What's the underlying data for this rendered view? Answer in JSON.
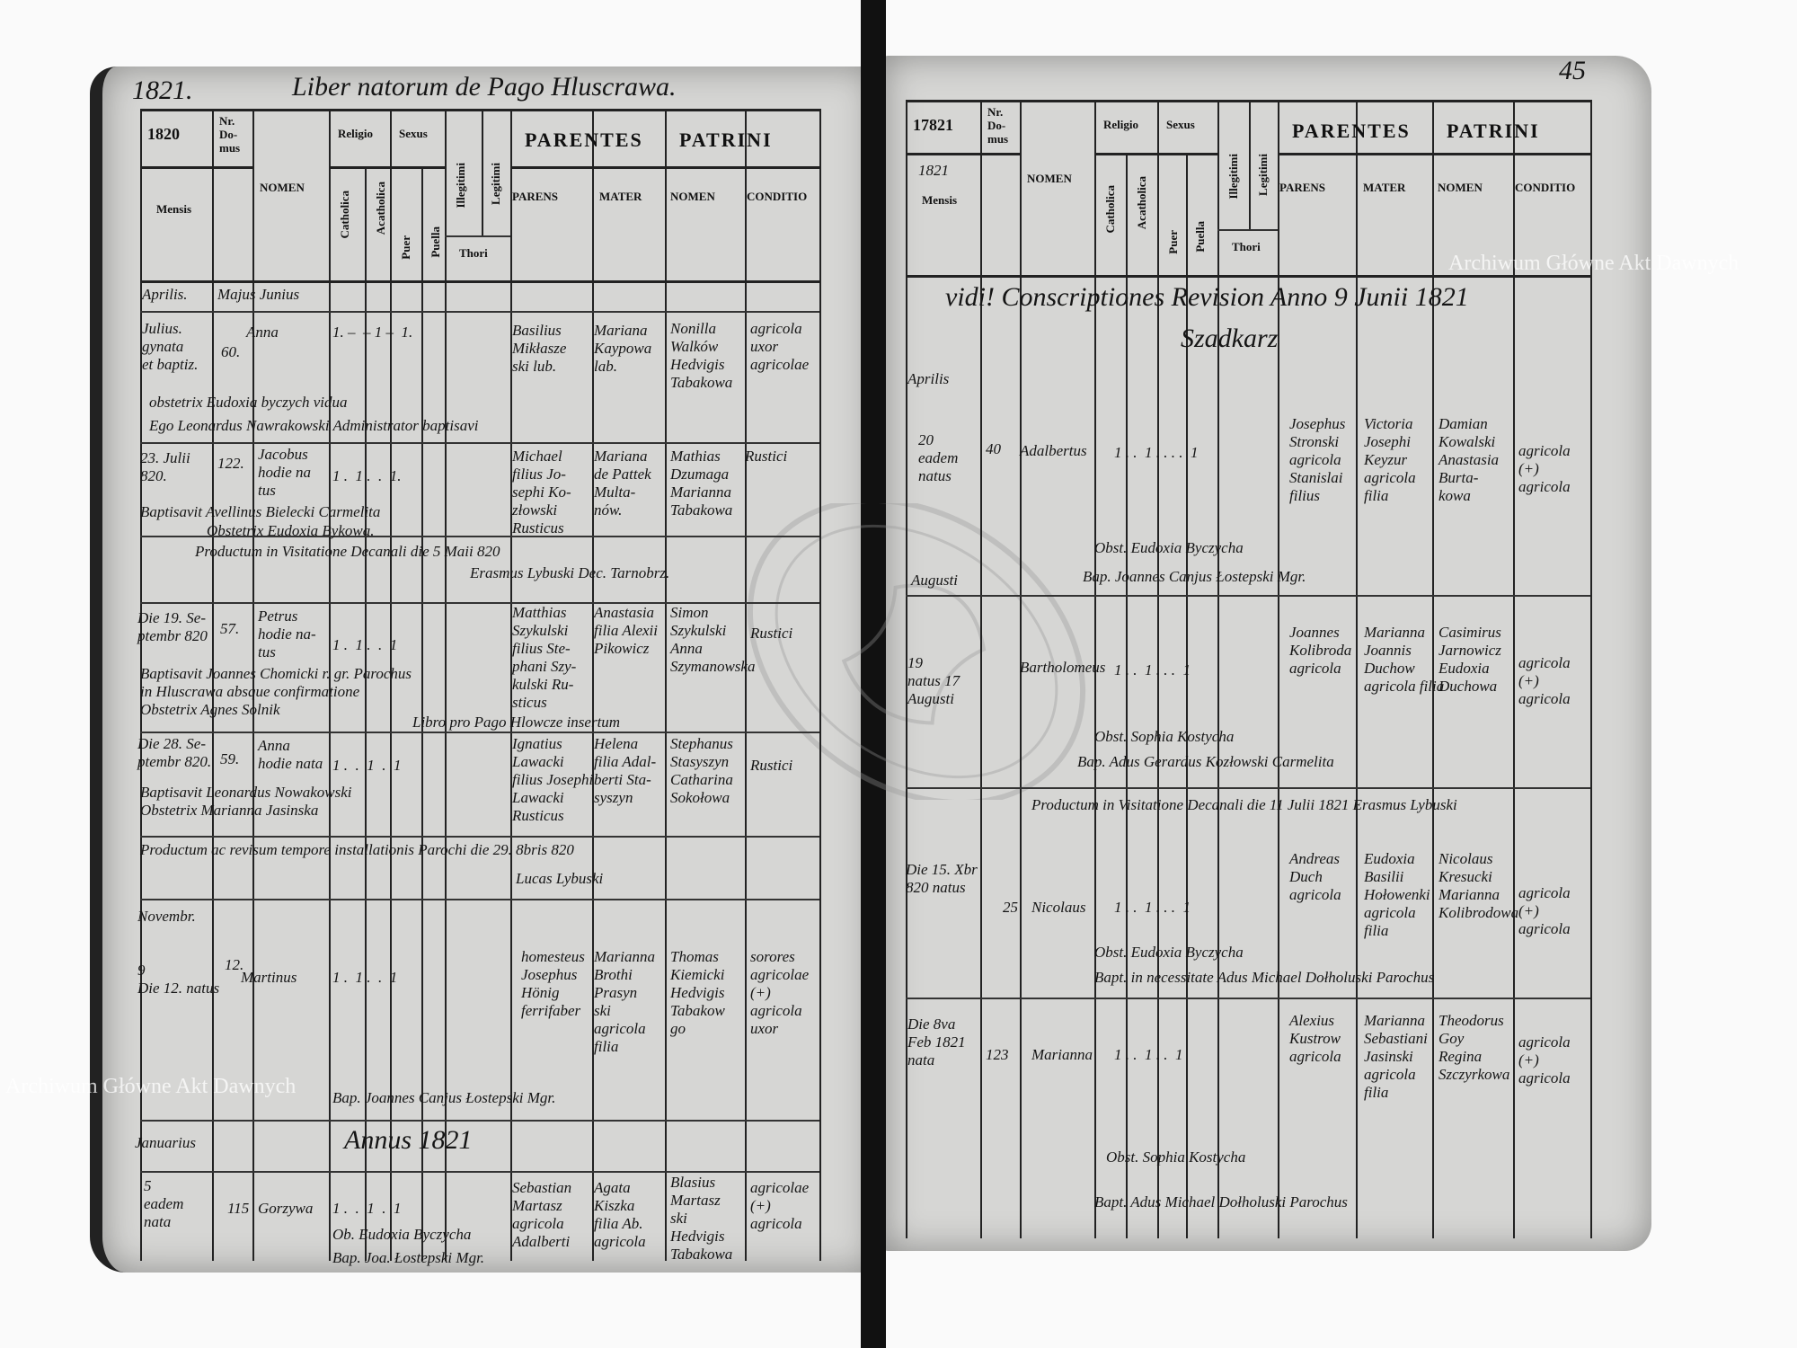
{
  "left_page": {
    "folio": "1821.",
    "title": "Liber natorum de Pago Hluscrawa.",
    "header": {
      "year": "1820",
      "mensis": "Mensis",
      "nr_domus": "Nr.\nDo-\nmus",
      "nomen": "NOMEN",
      "religio": "Religio",
      "catholica": "Catholica",
      "acatholica": "Acatholica",
      "sexus": "Sexus",
      "puer": "Puer",
      "puella": "Puella",
      "illegitimi": "Illegitimi",
      "legitimi": "Legitimi",
      "thori": "Thori",
      "parentes": "PARENTES",
      "parens": "PARENS",
      "mater": "MATER",
      "patrini": "PATRINI",
      "patrini_nomen": "NOMEN",
      "conditio": "CONDITIO"
    },
    "entries": [
      "Aprilis.",
      "Majus Junius",
      "Julius.\ngynata\net baptiz.",
      "Anna",
      "1. –  – 1 –  1.",
      "60.",
      "Basilius\nMikłasze\nski lub.",
      "Mariana\nKaypowa\nlab.",
      "Nonilla\nWalków\nHedvigis\nTabakowa",
      "agricola\nuxor\nagricolae",
      "obstetrix Eudoxia byczych vidua",
      "Ego Leonardus Nawrakowski Administrator baptisavi",
      "23. Julii\n820.",
      "122.",
      "Jacobus\nhodie na\ntus",
      "1 .  1 .  .  1.",
      "Michael\nfilius Jo-\nsephi Ko-\nzłowski\nRusticus",
      "Mariana\nde Pattek\nMulta-\nnów.",
      "Mathias\nDzumaga\nMarianna\nTabakowa",
      "Rustici",
      "Baptisavit Avellinus Bielecki Carmelita",
      "Obstetrix Eudoxia Bykowa.",
      "Productum in Visitatione Decanali die 5 Maii 820",
      "Erasmus Lybuski Dec. Tarnobrz.",
      "Die 19. Se-\nptembr 820",
      "57.",
      "Petrus\nhodie na-\ntus",
      "1 .  1 .  .  1",
      "Matthias\nSzykulski\nfilius Ste-\nphani Szy-\nkulski Ru-\nsticus",
      "Anastasia\nfilia Alexii\nPikowicz",
      "Simon\nSzykulski\nAnna\nSzymanowska",
      "Rustici",
      "Baptisavit Joannes Chomicki r. gr. Parochus\nin Hluscrawa absque confirmatione\nObstetrix Agnes Solnik",
      "Libro pro Pago Hlowcze insertum",
      "Die 28. Se-\nptembr 820.",
      "59.",
      "Anna\nhodie nata",
      "1 .  .  1  .  1",
      "Ignatius\nLawacki\nfilius Josephi\nLawacki\nRusticus",
      "Helena\nfilia Adal-\nberti Sta-\nsyszyn",
      "Stephanus\nStasyszyn\nCatharina\nSokołowa",
      "Rustici",
      "Baptisavit Leonardus Nowakowski\nObstetrix Marianna Jasinska",
      "Productum ac revisum tempore installationis Parochi die 29. 8bris 820",
      "Lucas Lybuski",
      "Novembr.",
      "9\nDie 12. natus",
      "12.",
      "Martinus",
      "1 .  1 .  .  1",
      "homesteus\nJosephus\nHönig\nferrifaber",
      "Marianna\nBrothi\nPrasyn\nski\nagricola\nfilia",
      "Thomas\nKiemicki\nHedvigis\nTabakow\ngo",
      "sorores\nagricolae\n(+)\nagricola\nuxor",
      "Bap. Joannes Canjus Łostepski Mgr.",
      "Januarius",
      "Annus 1821",
      "5\neadem\nnata",
      "115",
      "Gorzywa",
      "1 .  .  1  .  1",
      "Sebastian\nMartasz\nagricola\nAdalberti",
      "Agata\nKiszka\nfilia Ab.\nagricola",
      "Blasius\nMartasz\nski\nHedvigis\nTabakowa",
      "agricolae\n(+)\nagricola",
      "Ob. Eudoxia Byczycha",
      "Bap. Joa. Łostepski Mgr."
    ]
  },
  "right_page": {
    "folio": "45",
    "header": {
      "year": "17821",
      "year_hand": "1821",
      "mensis": "Mensis",
      "nr_domus": "Nr.\nDo-\nmus",
      "nomen": "NOMEN",
      "religio": "Religio",
      "catholica": "Catholica",
      "acatholica": "Acatholica",
      "sexus": "Sexus",
      "puer": "Puer",
      "puella": "Puella",
      "illegitimi": "Illegitimi",
      "legitimi": "Legitimi",
      "thori": "Thori",
      "parentes": "PARENTES",
      "parens": "PARENS",
      "mater": "MATER",
      "patrini": "PATRINI",
      "patrini_nomen": "NOMEN",
      "conditio": "CONDITIO"
    },
    "entries": [
      "vidi! Conscriptiones Revision Anno 9 Junii 1821",
      "Szadkarz",
      "Aprilis",
      "20\neadem\nnatus",
      "40",
      "Adalbertus",
      "1 . .  1 . . . .  1",
      "Josephus\nStronski\nagricola\nStanislai\nfilius",
      "Victoria\nJosephi\nKeyzur\nagricola\nfilia",
      "Damian\nKowalski\nAnastasia\nBurta-\nkowa",
      "agricola\n(+)\nagricola",
      "Obst. Eudoxia Byczycha",
      "Bap. Joannes Canjus Łostepski Mgr.",
      "Augusti",
      "19\nnatus 17\nAugusti",
      "Bartholomeus",
      "1 . .  1 . . .  1",
      "Joannes\nKolibroda\nagricola",
      "Marianna\nJoannis\nDuchow\nagricola filia",
      "Casimirus\nJarnowicz\nEudoxia\nDuchowa",
      "agricola\n(+)\nagricola",
      "Obst. Sophia Kostycha",
      "Bap. Adus Gerardus Kozłowski Carmelita",
      "Productum in Visitatione Decanali die 11 Julii 1821 Erasmus Lybuski",
      "Die 15. Xbr\n820 natus",
      "25",
      "Nicolaus",
      "1 . .  1 . . .  1",
      "Andreas\nDuch\nagricola",
      "Eudoxia\nBasilii\nHołowenki\nagricola\nfilia",
      "Nicolaus\nKresucki\nMarianna\nKolibrodowa",
      "agricola\n(+)\nagricola",
      "Obst. Eudoxia Byczycha",
      "Bapt. in necessitate Adus Michael Dołholuski Parochus",
      "Die 8va\nFeb 1821\nnata",
      "123",
      "Marianna",
      "1 . .  1 . .  1",
      "Alexius\nKustrow\nagricola",
      "Marianna\nSebastiani\nJasinski\nagricola\nfilia",
      "Theodorus\nGoy\nRegina\nSzczyrkowa",
      "agricola\n(+)\nagricola",
      "Obst. Sophia Kostycha",
      "Bapt. Adus Michael Dołholuski Parochus"
    ]
  },
  "watermarks": {
    "top_right": "Archiwum Główne Akt Dawnych",
    "bottom_left": "Archiwum Główne Akt Dawnych",
    "seal": "ARCHIWUM GŁÓWNE AKT DAWNYCH"
  },
  "colors": {
    "paper": "#d6d6d4",
    "ink": "#151515",
    "spine": "#111111"
  }
}
